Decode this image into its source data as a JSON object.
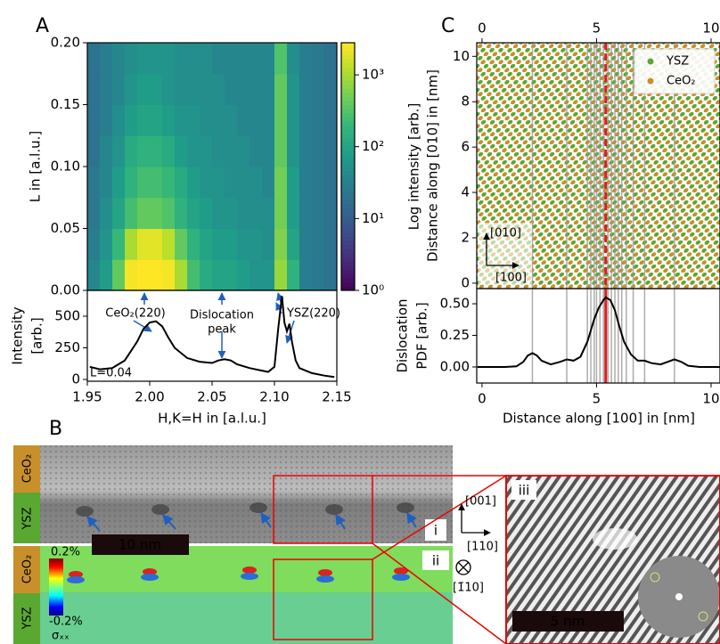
{
  "chart_data": [
    {
      "type": "heatmap",
      "panel_label": "A",
      "ylabel": "L in [a.l.u.]",
      "colorbar_label": "Log intensity [arb.]",
      "colormap": "viridis",
      "colorbar_log": true,
      "xlim": [
        1.95,
        2.15
      ],
      "ylim": [
        0,
        0.2
      ],
      "yticks": [
        {
          "value": 0,
          "label": "0.00"
        },
        0.05,
        {
          "value": 0.1,
          "label": "0.10"
        },
        0.15,
        {
          "value": 0.2,
          "label": "0.20"
        }
      ],
      "clim": [
        1,
        2800
      ],
      "cticks": [
        {
          "value": 1,
          "label": "10⁰"
        },
        {
          "value": 10,
          "label": "10¹"
        },
        {
          "value": 100,
          "label": "10²"
        },
        {
          "value": 1000,
          "label": "10³"
        }
      ],
      "xbins": [
        1.95,
        1.96,
        1.97,
        1.98,
        1.99,
        2.0,
        2.01,
        2.02,
        2.03,
        2.04,
        2.05,
        2.06,
        2.07,
        2.08,
        2.09,
        2.1,
        2.11,
        2.12,
        2.13,
        2.14,
        2.15
      ],
      "ybins": [
        0,
        0.025,
        0.05,
        0.075,
        0.1,
        0.125,
        0.15,
        0.175,
        0.2
      ],
      "z": [
        [
          40,
          80,
          400,
          2500,
          3000,
          3000,
          2500,
          1000,
          250,
          125,
          100,
          100,
          80,
          60,
          60,
          800,
          160,
          30,
          25,
          20
        ],
        [
          30,
          60,
          200,
          1000,
          2000,
          2000,
          1250,
          400,
          160,
          100,
          80,
          80,
          60,
          60,
          50,
          600,
          100,
          30,
          25,
          20
        ],
        [
          25,
          50,
          100,
          250,
          400,
          400,
          300,
          160,
          100,
          80,
          60,
          60,
          50,
          50,
          50,
          500,
          80,
          30,
          25,
          20
        ],
        [
          25,
          40,
          80,
          160,
          250,
          250,
          200,
          125,
          80,
          60,
          60,
          50,
          50,
          50,
          40,
          500,
          80,
          30,
          25,
          20
        ],
        [
          20,
          40,
          60,
          125,
          160,
          160,
          125,
          80,
          60,
          60,
          50,
          50,
          50,
          40,
          40,
          400,
          60,
          30,
          25,
          20
        ],
        [
          20,
          30,
          50,
          80,
          100,
          100,
          80,
          60,
          60,
          50,
          50,
          50,
          40,
          40,
          40,
          400,
          60,
          30,
          25,
          20
        ],
        [
          20,
          30,
          40,
          60,
          80,
          80,
          60,
          50,
          50,
          50,
          50,
          40,
          40,
          40,
          40,
          400,
          60,
          30,
          25,
          20
        ],
        [
          20,
          30,
          40,
          50,
          60,
          60,
          60,
          50,
          50,
          50,
          40,
          40,
          40,
          40,
          40,
          300,
          50,
          30,
          25,
          20
        ]
      ]
    },
    {
      "type": "line",
      "ylabel": [
        "Intensity",
        "[arb.]"
      ],
      "xlabel": "H,K=H in [a.l.u.]",
      "color": "#000000",
      "xlim": [
        1.95,
        2.15
      ],
      "ylim": [
        -14,
        704
      ],
      "xticks": [
        1.95,
        {
          "value": 2.0,
          "label": "2.00"
        },
        2.05,
        {
          "value": 2.1,
          "label": "2.10"
        },
        2.15
      ],
      "yticks": [
        0,
        250,
        500
      ],
      "x": [
        1.952,
        1.96,
        1.97,
        1.98,
        1.99,
        1.995,
        2.0,
        2.005,
        2.01,
        2.015,
        2.02,
        2.03,
        2.04,
        2.05,
        2.055,
        2.06,
        2.065,
        2.07,
        2.08,
        2.09,
        2.095,
        2.1,
        2.103,
        2.106,
        2.108,
        2.11,
        2.112,
        2.114,
        2.117,
        2.12,
        2.13,
        2.14,
        2.148
      ],
      "values": [
        100,
        80,
        90,
        150,
        300,
        400,
        450,
        460,
        420,
        330,
        250,
        170,
        140,
        130,
        150,
        160,
        150,
        120,
        90,
        70,
        60,
        100,
        400,
        660,
        450,
        380,
        440,
        300,
        150,
        90,
        50,
        30,
        20
      ],
      "annotations": [
        [
          "CeO₂(220)"
        ],
        [
          "Dislocation",
          "peak"
        ],
        [
          "YSZ(220)"
        ],
        [
          "L=0.04"
        ]
      ]
    },
    {
      "type": "lattice",
      "panel_label": "C",
      "ylabel": "Distance along [010] in [nm]",
      "xlim": [
        -0.23,
        10.39
      ],
      "ylim": [
        -0.24,
        10.6
      ],
      "xticks": [
        0,
        5,
        10
      ],
      "yticks": [
        0,
        2,
        4,
        6,
        8,
        10
      ],
      "series": [
        {
          "name": "YSZ",
          "color": "#5aa832"
        },
        {
          "name": "CeO₂",
          "color": "#c8902a"
        }
      ],
      "legend": "upper right",
      "inset_axes": [
        "[010]",
        "[100]"
      ]
    },
    {
      "type": "line",
      "ylabel": [
        "Dislocation",
        "PDF [arb.]"
      ],
      "xlabel": "Distance along [100] in [nm]",
      "color": "#000000",
      "xlim": [
        -0.23,
        10.39
      ],
      "ylim": [
        -0.127,
        0.62
      ],
      "xticks": [
        0,
        5,
        10
      ],
      "yticks": [
        {
          "value": 0,
          "label": "0.00"
        },
        0.25,
        {
          "value": 0.5,
          "label": "0.50"
        }
      ],
      "x": [
        -0.2,
        0,
        0.5,
        1,
        1.5,
        1.8,
        2.0,
        2.2,
        2.4,
        2.6,
        3.0,
        3.4,
        3.7,
        4.0,
        4.3,
        4.6,
        4.9,
        5.1,
        5.3,
        5.4,
        5.6,
        5.8,
        6.0,
        6.2,
        6.5,
        6.8,
        7.1,
        7.4,
        7.8,
        8.1,
        8.4,
        8.7,
        9.0,
        9.5,
        10.0,
        10.4
      ],
      "values": [
        0,
        0,
        0,
        0,
        0.005,
        0.04,
        0.09,
        0.11,
        0.09,
        0.05,
        0.02,
        0.04,
        0.06,
        0.05,
        0.08,
        0.2,
        0.38,
        0.47,
        0.53,
        0.55,
        0.53,
        0.45,
        0.32,
        0.2,
        0.1,
        0.05,
        0.05,
        0.03,
        0.02,
        0.04,
        0.06,
        0.04,
        0.01,
        0,
        0,
        0
      ],
      "dislocation_x": [
        2.2,
        3.7,
        4.6,
        4.75,
        4.9,
        5.0,
        5.15,
        5.3,
        5.5,
        5.65,
        5.8,
        5.95,
        6.1,
        6.3,
        6.6,
        7.1,
        8.4
      ],
      "mean_x": 5.4,
      "mean_color": "#e41a1c"
    }
  ],
  "panel_b": {
    "panel_label": "B",
    "layer_labels": [
      "CeO₂",
      "YSZ"
    ],
    "scale_bars": [
      "10 nm",
      "5 nm"
    ],
    "subpanels": [
      "i",
      "ii",
      "iii"
    ],
    "directions": [
      "[001]",
      "[110]",
      "[1̄10]"
    ],
    "strain_colorbar": {
      "max": "0.2%",
      "min": "-0.2%",
      "label": "σₓₓ"
    }
  }
}
